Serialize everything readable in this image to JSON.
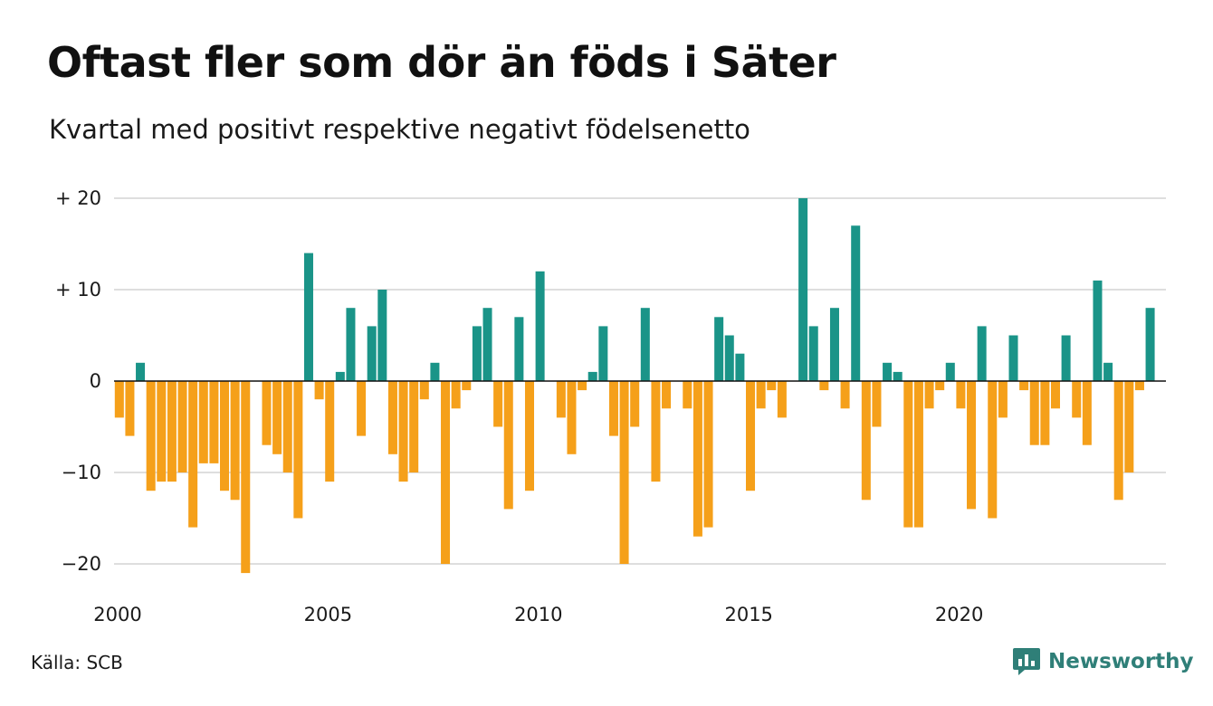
{
  "title": "Oftast fler som dör än föds i Säter",
  "subtitle": "Kvartal med positivt respektive negativt födelsenetto",
  "source": "Källa: SCB",
  "brand": {
    "name": "Newsworthy",
    "icon": "newsworthy-logo-icon",
    "color": "#2f7f78"
  },
  "chart_data": {
    "type": "bar",
    "title": "Oftast fler som dör än föds i Säter",
    "subtitle": "Kvartal med positivt respektive negativt födelsenetto",
    "xlabel": "",
    "ylabel": "",
    "ylim": [
      -23,
      21
    ],
    "y_ticks": [
      {
        "value": 20,
        "label": "+ 20"
      },
      {
        "value": 10,
        "label": "+ 10"
      },
      {
        "value": 0,
        "label": "0"
      },
      {
        "value": -10,
        "label": "−10"
      },
      {
        "value": -20,
        "label": "−20"
      }
    ],
    "x_ticks": [
      {
        "year": 2000,
        "label": "2000"
      },
      {
        "year": 2005,
        "label": "2005"
      },
      {
        "year": 2010,
        "label": "2010"
      },
      {
        "year": 2015,
        "label": "2015"
      },
      {
        "year": 2020,
        "label": "2020"
      }
    ],
    "start": "2000-Q1",
    "end": "2024-Q4",
    "categories": [
      "2000-Q1",
      "2000-Q2",
      "2000-Q3",
      "2000-Q4",
      "2001-Q1",
      "2001-Q2",
      "2001-Q3",
      "2001-Q4",
      "2002-Q1",
      "2002-Q2",
      "2002-Q3",
      "2002-Q4",
      "2003-Q1",
      "2003-Q2",
      "2003-Q3",
      "2003-Q4",
      "2004-Q1",
      "2004-Q2",
      "2004-Q3",
      "2004-Q4",
      "2005-Q1",
      "2005-Q2",
      "2005-Q3",
      "2005-Q4",
      "2006-Q1",
      "2006-Q2",
      "2006-Q3",
      "2006-Q4",
      "2007-Q1",
      "2007-Q2",
      "2007-Q3",
      "2007-Q4",
      "2008-Q1",
      "2008-Q2",
      "2008-Q3",
      "2008-Q4",
      "2009-Q1",
      "2009-Q2",
      "2009-Q3",
      "2009-Q4",
      "2010-Q1",
      "2010-Q2",
      "2010-Q3",
      "2010-Q4",
      "2011-Q1",
      "2011-Q2",
      "2011-Q3",
      "2011-Q4",
      "2012-Q1",
      "2012-Q2",
      "2012-Q3",
      "2012-Q4",
      "2013-Q1",
      "2013-Q2",
      "2013-Q3",
      "2013-Q4",
      "2014-Q1",
      "2014-Q2",
      "2014-Q3",
      "2014-Q4",
      "2015-Q1",
      "2015-Q2",
      "2015-Q3",
      "2015-Q4",
      "2016-Q1",
      "2016-Q2",
      "2016-Q3",
      "2016-Q4",
      "2017-Q1",
      "2017-Q2",
      "2017-Q3",
      "2017-Q4",
      "2018-Q1",
      "2018-Q2",
      "2018-Q3",
      "2018-Q4",
      "2019-Q1",
      "2019-Q2",
      "2019-Q3",
      "2019-Q4",
      "2020-Q1",
      "2020-Q2",
      "2020-Q3",
      "2020-Q4",
      "2021-Q1",
      "2021-Q2",
      "2021-Q3",
      "2021-Q4",
      "2022-Q1",
      "2022-Q2",
      "2022-Q3",
      "2022-Q4",
      "2023-Q1",
      "2023-Q2",
      "2023-Q3",
      "2023-Q4",
      "2024-Q1",
      "2024-Q2",
      "2024-Q3",
      "2024-Q4"
    ],
    "values": [
      -4,
      -6,
      2,
      -12,
      -11,
      -11,
      -10,
      -16,
      -9,
      -9,
      -12,
      -13,
      -21,
      0,
      -7,
      -8,
      -10,
      -15,
      14,
      -2,
      -11,
      1,
      8,
      -6,
      6,
      10,
      -8,
      -11,
      -10,
      -2,
      2,
      -20,
      -3,
      -1,
      6,
      8,
      -5,
      -14,
      7,
      -12,
      12,
      0,
      -4,
      -8,
      -1,
      1,
      6,
      -6,
      -20,
      -5,
      8,
      -11,
      -3,
      0,
      -3,
      -17,
      -16,
      7,
      5,
      3,
      -12,
      -3,
      -1,
      -4,
      0,
      20,
      6,
      -1,
      8,
      -3,
      17,
      -13,
      -5,
      2,
      1,
      -16,
      -16,
      -3,
      -1,
      2,
      -3,
      -14,
      6,
      -15,
      -4,
      5,
      -1,
      -7,
      -7,
      -3,
      5,
      -4,
      -7,
      11,
      2,
      -13,
      -10,
      -1,
      8,
      0
    ],
    "colors": {
      "positive": "#1a9488",
      "negative": "#f5a01a",
      "grid": "#dedede",
      "zero_line": "#111111"
    },
    "grid": true,
    "legend": "none"
  }
}
